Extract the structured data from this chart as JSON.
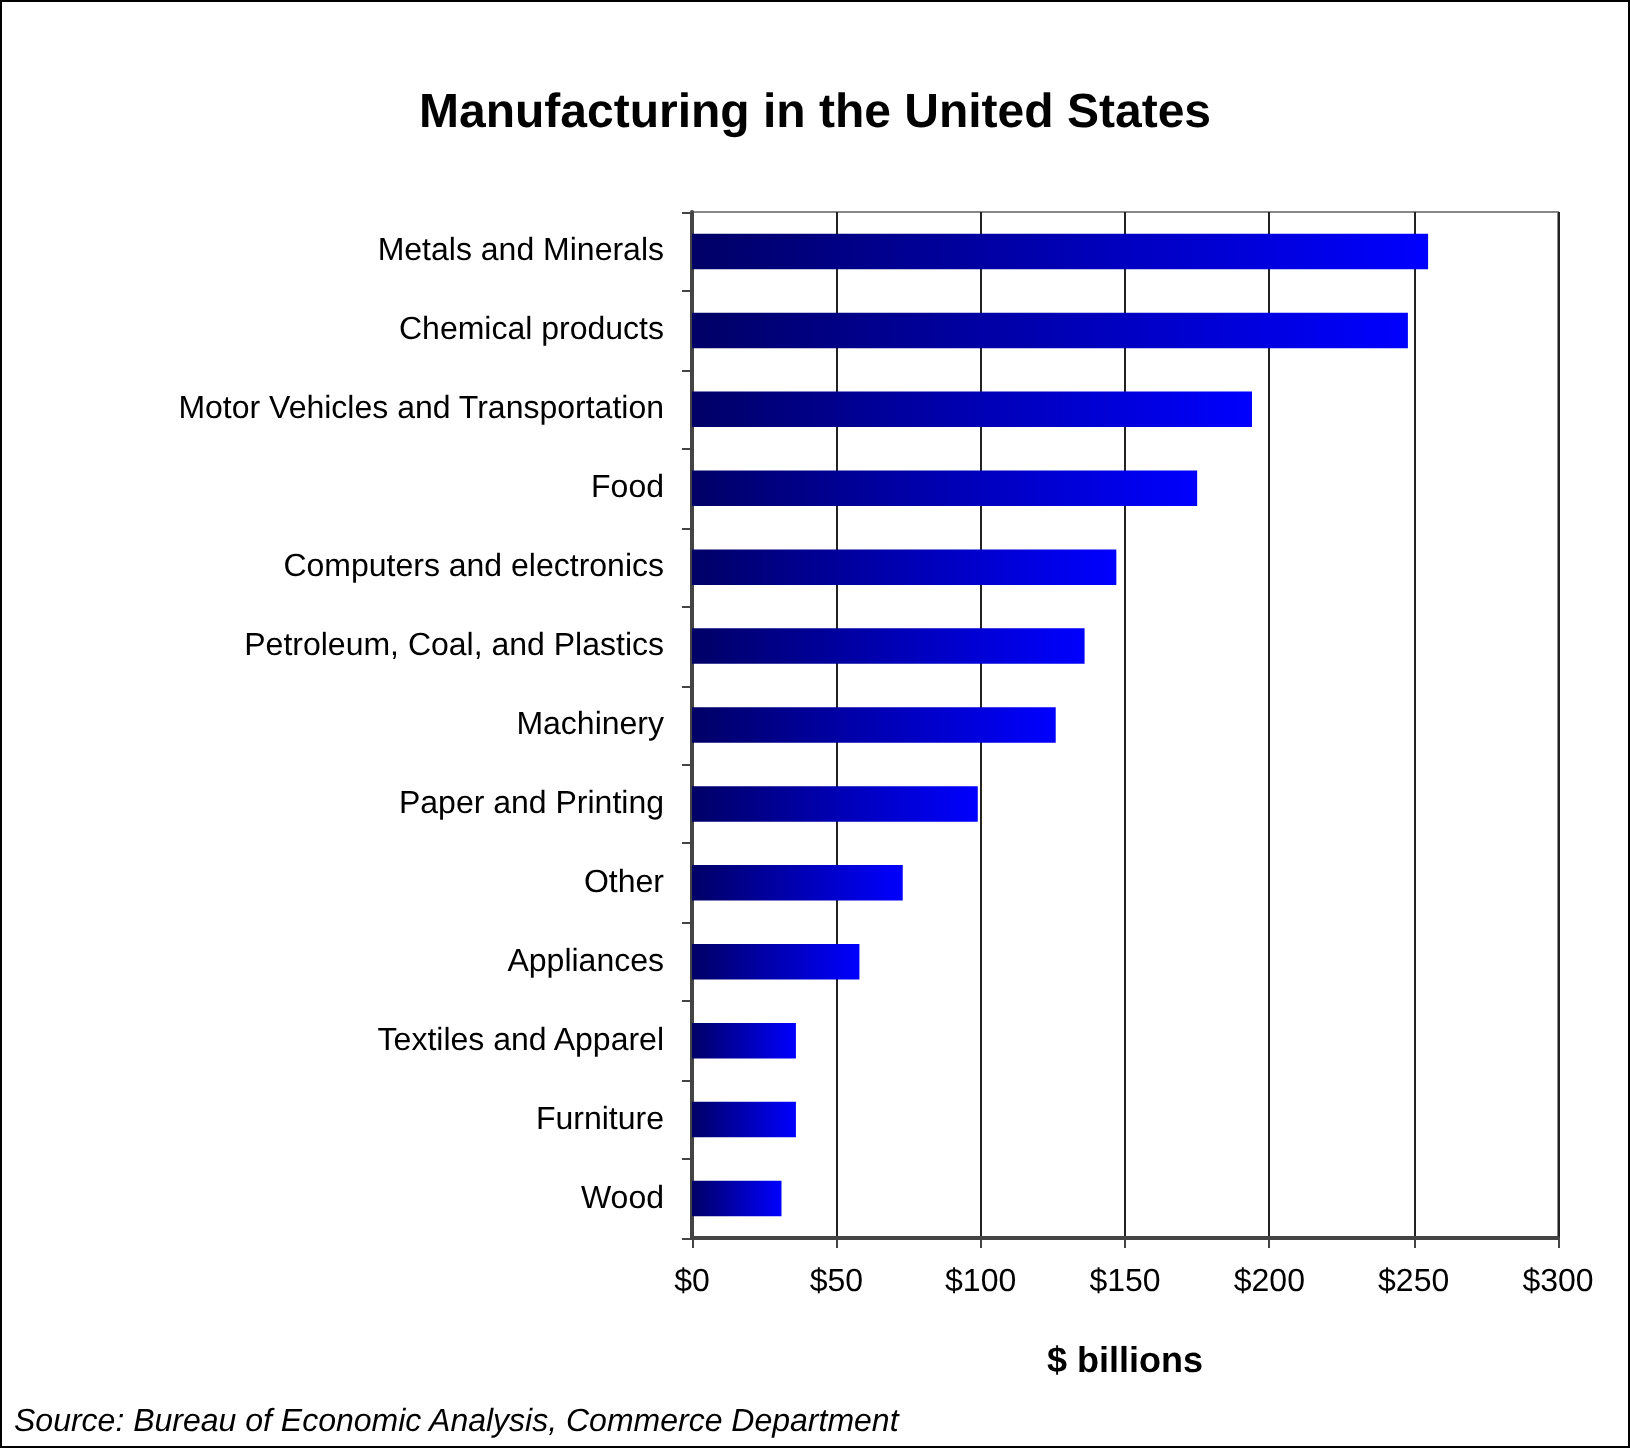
{
  "chart_data": {
    "type": "bar",
    "orientation": "horizontal",
    "title": "Manufacturing in the United States",
    "xlabel": "$ billions",
    "categories": [
      "Metals and Minerals",
      "Chemical products",
      "Motor Vehicles and Transportation",
      "Food",
      "Computers and electronics",
      "Petroleum, Coal, and Plastics",
      "Machinery",
      "Paper and Printing",
      "Other",
      "Appliances",
      "Textiles and Apparel",
      "Furniture",
      "Wood"
    ],
    "values": [
      255,
      248,
      194,
      175,
      147,
      136,
      126,
      99,
      73,
      58,
      36,
      36,
      31
    ],
    "color": "#0000ff",
    "xlim": [
      0,
      300
    ],
    "xticks": [
      {
        "value": 0,
        "label": "$0"
      },
      {
        "value": 50,
        "label": "$50"
      },
      {
        "value": 100,
        "label": "$100"
      },
      {
        "value": 150,
        "label": "$150"
      },
      {
        "value": 200,
        "label": "$200"
      },
      {
        "value": 250,
        "label": "$250"
      },
      {
        "value": 300,
        "label": "$300"
      }
    ],
    "grid": "x",
    "annotations": [
      "Source: Bureau of Economic Analysis, Commerce Department"
    ]
  }
}
